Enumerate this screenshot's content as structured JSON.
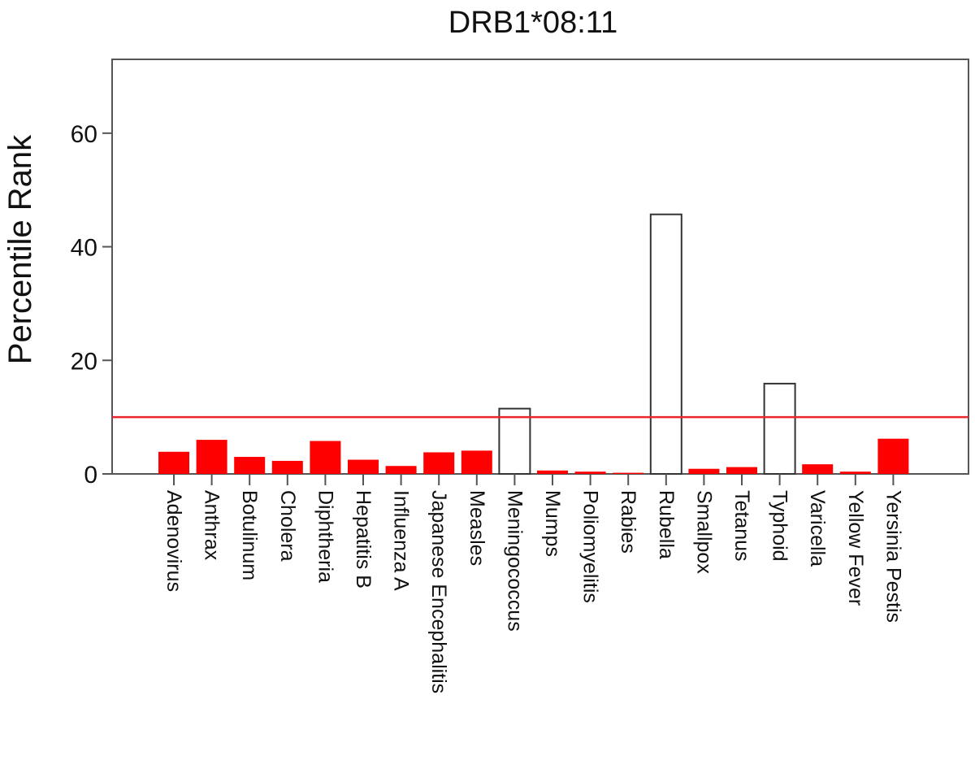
{
  "chart_data": {
    "type": "bar",
    "title": "DRB1*08:11",
    "xlabel": "",
    "ylabel": "Percentile Rank",
    "ylim": [
      0,
      73
    ],
    "yticks": [
      0,
      20,
      40,
      60
    ],
    "grid": false,
    "threshold": {
      "value": 10,
      "color": "#e8262b"
    },
    "colors": {
      "below_threshold": "#ff0000",
      "above_threshold": "#ffffff",
      "outline": "#333333"
    },
    "categories": [
      "Adenovirus",
      "Anthrax",
      "Botulinum",
      "Cholera",
      "Diphtheria",
      "Hepatitis B",
      "Influenza A",
      "Japanese Encephalitis",
      "Measles",
      "Meningococcus",
      "Mumps",
      "Poliomyelitis",
      "Rabies",
      "Rubella",
      "Smallpox",
      "Tetanus",
      "Typhoid",
      "Varicella",
      "Yellow Fever",
      "Yersinia Pestis"
    ],
    "values": [
      3.9,
      6.0,
      3.0,
      2.3,
      5.8,
      2.5,
      1.4,
      3.8,
      4.1,
      11.5,
      0.6,
      0.4,
      0.2,
      45.7,
      0.9,
      1.2,
      15.9,
      1.7,
      0.4,
      6.2
    ]
  }
}
